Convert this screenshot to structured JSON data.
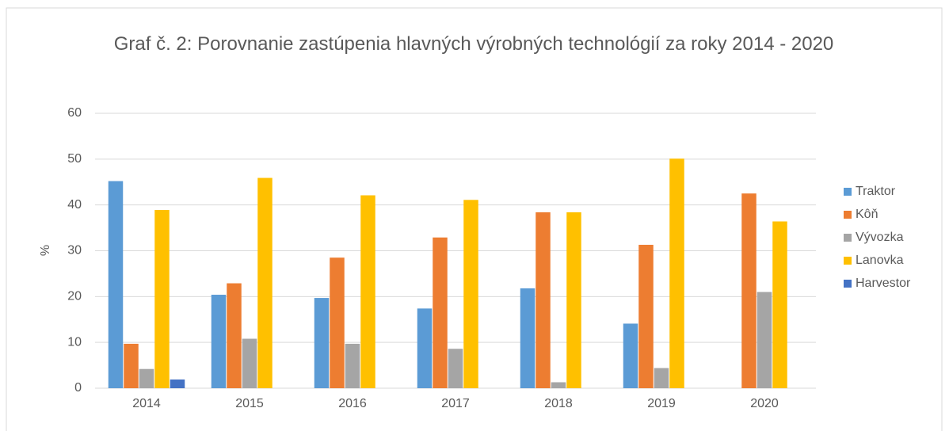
{
  "chart_data": {
    "type": "bar",
    "title": "Graf č. 2: Porovnanie zastúpenia hlavných výrobných technológií za roky 2014 - 2020",
    "y_label": "%",
    "categories": [
      "2014",
      "2015",
      "2016",
      "2017",
      "2018",
      "2019",
      "2020"
    ],
    "series": [
      {
        "name": "Traktor",
        "color": "#5b9bd5",
        "values": [
          45.2,
          20.4,
          19.7,
          17.4,
          21.8,
          14.1,
          0
        ]
      },
      {
        "name": "Kôň",
        "color": "#ed7d31",
        "values": [
          9.7,
          22.9,
          28.5,
          32.9,
          38.4,
          31.3,
          42.5
        ]
      },
      {
        "name": "Vývozka",
        "color": "#a5a5a5",
        "values": [
          4.2,
          10.8,
          9.7,
          8.6,
          1.3,
          4.4,
          21.0
        ]
      },
      {
        "name": "Lanovka",
        "color": "#ffc000",
        "values": [
          38.9,
          45.9,
          42.1,
          41.1,
          38.4,
          50.1,
          36.4
        ]
      },
      {
        "name": "Harvestor",
        "color": "#4472c4",
        "values": [
          1.9,
          0,
          0,
          0,
          0,
          0,
          0
        ]
      }
    ],
    "ylim": [
      0,
      60
    ],
    "yticks": [
      0,
      10,
      20,
      30,
      40,
      50,
      60
    ],
    "grid": true,
    "legend": "right"
  }
}
